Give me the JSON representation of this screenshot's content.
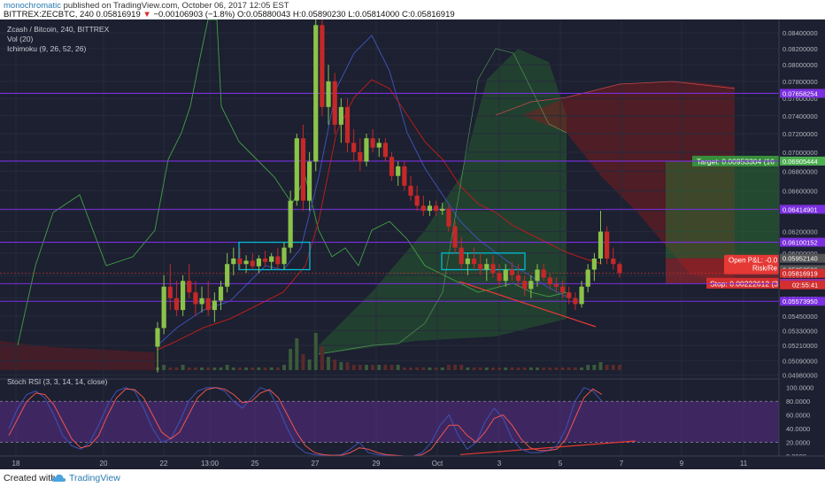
{
  "header": {
    "author": "monochromatic",
    "published": "published on TradingView.com, October 06, 2017 12:05 EST",
    "symbol_line": "BITTREX:ZECBTC, 240",
    "last": "0.05816919",
    "change": "−0.00106903 (−1.8%)",
    "o": "O:0.05880043",
    "h": "H:0.05890230",
    "l": "L:0.05814000",
    "c": "C:0.05816919"
  },
  "legend": {
    "title": "Zcash / Bitcoin, 240, BITTREX",
    "vol": "Vol (20)",
    "ichimoku": "Ichimoku (9, 26, 52, 26)",
    "stoch": "Stoch RSI (3, 3, 14, 14, close)"
  },
  "footer": {
    "created": "Created with",
    "brand": "TradingView"
  },
  "colors": {
    "background": "#1c2030",
    "up": "#8bc34a",
    "down": "#c62828",
    "level": "#7b2fe0",
    "box": "#00bcd4",
    "trend": "#e53935",
    "rsi_k": "#3f51b5",
    "rsi_d": "#ef5350"
  },
  "chart_data": [
    {
      "type": "candlestick",
      "title": "Zcash / Bitcoin, 240, BITTREX",
      "y_axis": {
        "ticks": [
          "0.08400000",
          "0.08200000",
          "0.08000000",
          "0.07800000",
          "0.07600000",
          "0.07400000",
          "0.07200000",
          "0.07000000",
          "0.06800000",
          "0.06600000",
          "0.06400000",
          "0.06200000",
          "0.06000000",
          "0.05800000",
          "0.05600000",
          "0.05450000",
          "0.05330000",
          "0.05210000",
          "0.05090000",
          "0.04980000"
        ],
        "range": [
          0.0495,
          0.0855
        ],
        "scale": "log"
      },
      "x_axis": {
        "ticks": [
          "18",
          "20",
          "22",
          "13:00",
          "25",
          "27",
          "29",
          "Oct",
          "3",
          "5",
          "7",
          "9",
          "11"
        ]
      },
      "price_levels": [
        {
          "value": 0.07658254,
          "label": "0.07658254",
          "color": "#7b2fe0"
        },
        {
          "value": 0.06905236,
          "label": "0.06905236",
          "color": "#7b2fe0"
        },
        {
          "value": 0.06905444,
          "label": "0.06905444",
          "color": "#4caf50"
        },
        {
          "value": 0.06414901,
          "label": "0.06414901",
          "color": "#7b2fe0"
        },
        {
          "value": 0.06100152,
          "label": "0.06100152",
          "color": "#7b2fe0"
        },
        {
          "value": 0.0595214,
          "label": "0.05952140",
          "color": "#555555"
        },
        {
          "value": 0.05850526,
          "label": "0.05850526",
          "color": "#555555"
        },
        {
          "value": 0.05816919,
          "label": "0.05816919",
          "color": "#d32f2f"
        },
        {
          "value": 0.05729528,
          "label": "0.05729528",
          "color": "#d32f2f"
        },
        {
          "value": 0.05725911,
          "label": "0.05725911",
          "color": "#7b2fe0"
        },
        {
          "value": 0.0557395,
          "label": "0.05573950",
          "color": "#7b2fe0"
        }
      ],
      "countdown": "02:55:41",
      "position": {
        "target": "Target: 0.00953304 (16",
        "stop": "Stop: 0.00222612 (3",
        "open_pnl": "Open P&L: -0.0",
        "risk": "Risk/Re"
      },
      "candles": [
        {
          "o": 0.052,
          "h": 0.054,
          "l": 0.05,
          "c": 0.0535
        },
        {
          "o": 0.0535,
          "h": 0.058,
          "l": 0.053,
          "c": 0.057
        },
        {
          "o": 0.057,
          "h": 0.059,
          "l": 0.055,
          "c": 0.056
        },
        {
          "o": 0.056,
          "h": 0.0575,
          "l": 0.0545,
          "c": 0.055
        },
        {
          "o": 0.055,
          "h": 0.058,
          "l": 0.0545,
          "c": 0.0575
        },
        {
          "o": 0.0575,
          "h": 0.059,
          "l": 0.056,
          "c": 0.0565
        },
        {
          "o": 0.0565,
          "h": 0.0575,
          "l": 0.0545,
          "c": 0.0555
        },
        {
          "o": 0.0555,
          "h": 0.057,
          "l": 0.0548,
          "c": 0.056
        },
        {
          "o": 0.056,
          "h": 0.0575,
          "l": 0.0545,
          "c": 0.055
        },
        {
          "o": 0.055,
          "h": 0.0565,
          "l": 0.054,
          "c": 0.0558
        },
        {
          "o": 0.0558,
          "h": 0.0575,
          "l": 0.055,
          "c": 0.057
        },
        {
          "o": 0.057,
          "h": 0.06,
          "l": 0.0565,
          "c": 0.059
        },
        {
          "o": 0.059,
          "h": 0.0605,
          "l": 0.058,
          "c": 0.0595
        },
        {
          "o": 0.0595,
          "h": 0.0605,
          "l": 0.0585,
          "c": 0.059
        },
        {
          "o": 0.059,
          "h": 0.0598,
          "l": 0.0582,
          "c": 0.0593
        },
        {
          "o": 0.0593,
          "h": 0.06,
          "l": 0.0585,
          "c": 0.0588
        },
        {
          "o": 0.0588,
          "h": 0.0598,
          "l": 0.0582,
          "c": 0.0595
        },
        {
          "o": 0.0595,
          "h": 0.0602,
          "l": 0.0588,
          "c": 0.0592
        },
        {
          "o": 0.0592,
          "h": 0.06,
          "l": 0.0585,
          "c": 0.0597
        },
        {
          "o": 0.0597,
          "h": 0.0605,
          "l": 0.0585,
          "c": 0.059
        },
        {
          "o": 0.059,
          "h": 0.061,
          "l": 0.0585,
          "c": 0.0605
        },
        {
          "o": 0.0605,
          "h": 0.066,
          "l": 0.06,
          "c": 0.065
        },
        {
          "o": 0.065,
          "h": 0.072,
          "l": 0.0645,
          "c": 0.0715
        },
        {
          "o": 0.0715,
          "h": 0.073,
          "l": 0.064,
          "c": 0.065
        },
        {
          "o": 0.065,
          "h": 0.07,
          "l": 0.064,
          "c": 0.069
        },
        {
          "o": 0.069,
          "h": 0.086,
          "l": 0.068,
          "c": 0.085
        },
        {
          "o": 0.085,
          "h": 0.086,
          "l": 0.074,
          "c": 0.075
        },
        {
          "o": 0.075,
          "h": 0.08,
          "l": 0.073,
          "c": 0.078
        },
        {
          "o": 0.078,
          "h": 0.079,
          "l": 0.072,
          "c": 0.073
        },
        {
          "o": 0.073,
          "h": 0.076,
          "l": 0.071,
          "c": 0.075
        },
        {
          "o": 0.075,
          "h": 0.076,
          "l": 0.07,
          "c": 0.071
        },
        {
          "o": 0.071,
          "h": 0.0725,
          "l": 0.069,
          "c": 0.07
        },
        {
          "o": 0.07,
          "h": 0.0715,
          "l": 0.068,
          "c": 0.069
        },
        {
          "o": 0.069,
          "h": 0.072,
          "l": 0.0685,
          "c": 0.0715
        },
        {
          "o": 0.0715,
          "h": 0.0725,
          "l": 0.07,
          "c": 0.0705
        },
        {
          "o": 0.0705,
          "h": 0.0715,
          "l": 0.0695,
          "c": 0.071
        },
        {
          "o": 0.071,
          "h": 0.0715,
          "l": 0.069,
          "c": 0.0695
        },
        {
          "o": 0.0695,
          "h": 0.07,
          "l": 0.067,
          "c": 0.0675
        },
        {
          "o": 0.0675,
          "h": 0.069,
          "l": 0.0665,
          "c": 0.0685
        },
        {
          "o": 0.0685,
          "h": 0.069,
          "l": 0.066,
          "c": 0.0665
        },
        {
          "o": 0.0665,
          "h": 0.0675,
          "l": 0.065,
          "c": 0.0655
        },
        {
          "o": 0.0655,
          "h": 0.0665,
          "l": 0.064,
          "c": 0.0645
        },
        {
          "o": 0.0645,
          "h": 0.0655,
          "l": 0.0635,
          "c": 0.064
        },
        {
          "o": 0.064,
          "h": 0.065,
          "l": 0.0635,
          "c": 0.0645
        },
        {
          "o": 0.0645,
          "h": 0.065,
          "l": 0.0635,
          "c": 0.064
        },
        {
          "o": 0.064,
          "h": 0.0648,
          "l": 0.0636,
          "c": 0.0642
        },
        {
          "o": 0.0642,
          "h": 0.0645,
          "l": 0.062,
          "c": 0.0625
        },
        {
          "o": 0.0625,
          "h": 0.063,
          "l": 0.06,
          "c": 0.0605
        },
        {
          "o": 0.0605,
          "h": 0.0615,
          "l": 0.0585,
          "c": 0.059
        },
        {
          "o": 0.059,
          "h": 0.06,
          "l": 0.058,
          "c": 0.0595
        },
        {
          "o": 0.0595,
          "h": 0.0605,
          "l": 0.0585,
          "c": 0.059
        },
        {
          "o": 0.059,
          "h": 0.06,
          "l": 0.058,
          "c": 0.0585
        },
        {
          "o": 0.0585,
          "h": 0.0595,
          "l": 0.0575,
          "c": 0.059
        },
        {
          "o": 0.059,
          "h": 0.0598,
          "l": 0.0578,
          "c": 0.0582
        },
        {
          "o": 0.0582,
          "h": 0.059,
          "l": 0.057,
          "c": 0.0575
        },
        {
          "o": 0.0575,
          "h": 0.059,
          "l": 0.057,
          "c": 0.0585
        },
        {
          "o": 0.0585,
          "h": 0.0592,
          "l": 0.0575,
          "c": 0.058
        },
        {
          "o": 0.058,
          "h": 0.059,
          "l": 0.057,
          "c": 0.0575
        },
        {
          "o": 0.0575,
          "h": 0.058,
          "l": 0.0562,
          "c": 0.0568
        },
        {
          "o": 0.0568,
          "h": 0.058,
          "l": 0.056,
          "c": 0.0575
        },
        {
          "o": 0.0575,
          "h": 0.059,
          "l": 0.057,
          "c": 0.0585
        },
        {
          "o": 0.0585,
          "h": 0.059,
          "l": 0.0575,
          "c": 0.0578
        },
        {
          "o": 0.0578,
          "h": 0.0582,
          "l": 0.0568,
          "c": 0.0572
        },
        {
          "o": 0.0572,
          "h": 0.0578,
          "l": 0.0565,
          "c": 0.057
        },
        {
          "o": 0.057,
          "h": 0.0575,
          "l": 0.056,
          "c": 0.0565
        },
        {
          "o": 0.0565,
          "h": 0.057,
          "l": 0.0555,
          "c": 0.056
        },
        {
          "o": 0.056,
          "h": 0.0565,
          "l": 0.055,
          "c": 0.0555
        },
        {
          "o": 0.0555,
          "h": 0.0575,
          "l": 0.0552,
          "c": 0.057
        },
        {
          "o": 0.057,
          "h": 0.059,
          "l": 0.0565,
          "c": 0.0585
        },
        {
          "o": 0.0585,
          "h": 0.06,
          "l": 0.0575,
          "c": 0.0595
        },
        {
          "o": 0.0595,
          "h": 0.064,
          "l": 0.059,
          "c": 0.062
        },
        {
          "o": 0.062,
          "h": 0.0625,
          "l": 0.059,
          "c": 0.0595
        },
        {
          "o": 0.0595,
          "h": 0.0605,
          "l": 0.0585,
          "c": 0.059
        },
        {
          "o": 0.059,
          "h": 0.0592,
          "l": 0.0578,
          "c": 0.0582
        }
      ]
    },
    {
      "type": "line",
      "title": "Stoch RSI (3, 3, 14, 14, close)",
      "y_axis": {
        "ticks": [
          "100.0000",
          "80.0000",
          "60.0000",
          "40.0000",
          "20.0000",
          "0.0000"
        ],
        "range": [
          0,
          110
        ]
      },
      "series": [
        {
          "values": [
            40,
            70,
            90,
            95,
            85,
            60,
            30,
            15,
            10,
            20,
            45,
            75,
            95,
            100,
            95,
            70,
            40,
            20,
            25,
            50,
            80,
            95,
            100,
            100,
            95,
            80,
            70,
            85,
            100,
            95,
            70,
            40,
            15,
            5,
            2,
            1,
            1,
            2,
            10,
            20,
            5,
            2,
            1,
            1,
            0,
            0,
            5,
            20,
            45,
            60,
            30,
            10,
            20,
            50,
            70,
            55,
            25,
            10,
            5,
            5,
            8,
            15,
            40,
            80,
            100,
            95,
            80
          ]
        },
        {
          "values": [
            30,
            55,
            80,
            92,
            90,
            75,
            50,
            25,
            12,
            15,
            30,
            60,
            85,
            98,
            97,
            85,
            60,
            35,
            25,
            35,
            60,
            85,
            97,
            100,
            98,
            90,
            78,
            80,
            92,
            97,
            85,
            60,
            35,
            15,
            5,
            2,
            1,
            1,
            5,
            12,
            10,
            5,
            2,
            1,
            0,
            0,
            2,
            10,
            28,
            45,
            45,
            30,
            20,
            35,
            55,
            60,
            45,
            25,
            12,
            8,
            8,
            10,
            25,
            55,
            85,
            98,
            90
          ]
        }
      ]
    }
  ]
}
